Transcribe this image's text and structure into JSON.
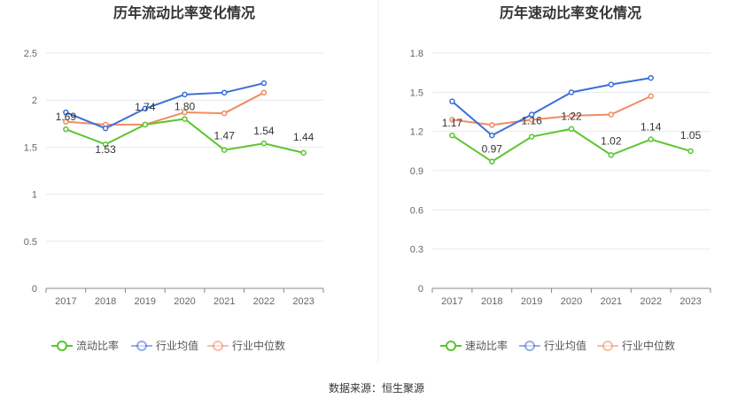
{
  "source": "数据来源：恒生聚源",
  "chart_data": [
    {
      "type": "line",
      "title": "历年流动比率变化情况",
      "categories": [
        "2017",
        "2018",
        "2019",
        "2020",
        "2021",
        "2022",
        "2023"
      ],
      "ylim": [
        0,
        2.5
      ],
      "yticks": [
        "0",
        "0.5",
        "1",
        "1.5",
        "2",
        "2.5"
      ],
      "ytick_values": [
        0,
        0.5,
        1,
        1.5,
        2,
        2.5
      ],
      "grid": true,
      "legend_position": "bottom",
      "series": [
        {
          "name": "流动比率",
          "color": "#5cc530",
          "values": [
            1.69,
            1.53,
            1.74,
            1.8,
            1.47,
            1.54,
            1.44
          ],
          "labels": [
            "1.69",
            "1.53",
            "1.74",
            "1.80",
            "1.47",
            "1.54",
            "1.44"
          ]
        },
        {
          "name": "行业均值",
          "color": "#3a6fd8",
          "values": [
            1.87,
            1.7,
            1.91,
            2.06,
            2.08,
            2.18,
            null
          ]
        },
        {
          "name": "行业中位数",
          "color": "#f08c63",
          "values": [
            1.77,
            1.74,
            1.74,
            1.87,
            1.86,
            2.08,
            null
          ]
        }
      ]
    },
    {
      "type": "line",
      "title": "历年速动比率变化情况",
      "categories": [
        "2017",
        "2018",
        "2019",
        "2020",
        "2021",
        "2022",
        "2023"
      ],
      "ylim": [
        0,
        1.8
      ],
      "yticks": [
        "0",
        "0.3",
        "0.6",
        "0.9",
        "1.2",
        "1.5",
        "1.8"
      ],
      "ytick_values": [
        0,
        0.3,
        0.6,
        0.9,
        1.2,
        1.5,
        1.8
      ],
      "grid": true,
      "legend_position": "bottom",
      "series": [
        {
          "name": "速动比率",
          "color": "#5cc530",
          "values": [
            1.17,
            0.97,
            1.16,
            1.22,
            1.02,
            1.14,
            1.05
          ],
          "labels": [
            "1.17",
            "0.97",
            "1.16",
            "1.22",
            "1.02",
            "1.14",
            "1.05"
          ]
        },
        {
          "name": "行业均值",
          "color": "#3a6fd8",
          "values": [
            1.43,
            1.17,
            1.33,
            1.5,
            1.56,
            1.61,
            null
          ]
        },
        {
          "name": "行业中位数",
          "color": "#f08c63",
          "values": [
            1.29,
            1.25,
            1.29,
            1.32,
            1.33,
            1.47,
            null
          ]
        }
      ]
    }
  ]
}
